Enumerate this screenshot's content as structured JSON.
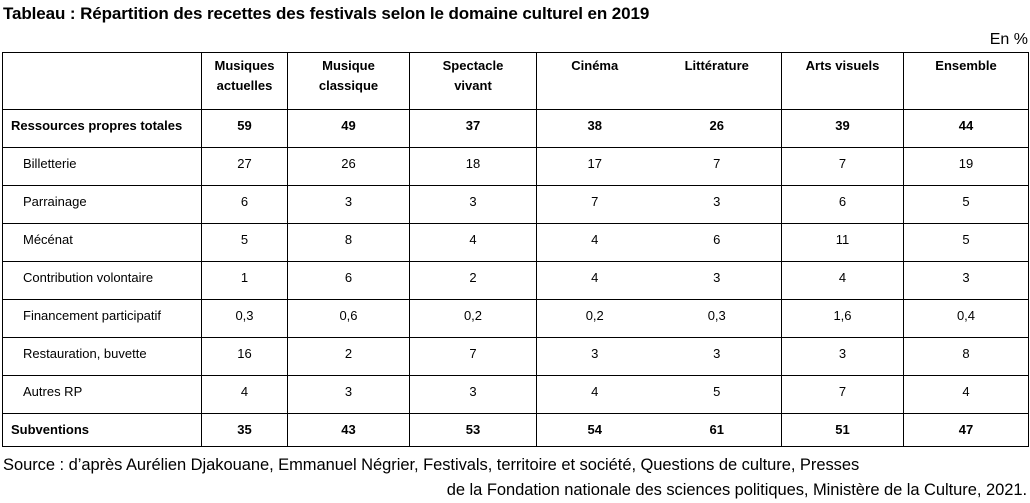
{
  "title": "Tableau : Répartition des recettes des festivals selon le domaine culturel en 2019",
  "unit": "En %",
  "columns": [
    {
      "line1": "Musiques",
      "line2": "actuelles"
    },
    {
      "line1": "Musique",
      "line2": "classique"
    },
    {
      "line1": "Spectacle",
      "line2": "vivant"
    },
    {
      "line1": "Cinéma",
      "line2": ""
    },
    {
      "line1": "Littérature",
      "line2": ""
    },
    {
      "line1": "Arts visuels",
      "line2": ""
    },
    {
      "line1": "Ensemble",
      "line2": ""
    }
  ],
  "rows": [
    {
      "label": "Ressources propres totales",
      "values": [
        "59",
        "49",
        "37",
        "38",
        "26",
        "39",
        "44"
      ]
    },
    {
      "label": "Billetterie",
      "values": [
        "27",
        "26",
        "18",
        "17",
        "7",
        "7",
        "19"
      ]
    },
    {
      "label": "Parrainage",
      "values": [
        "6",
        "3",
        "3",
        "7",
        "3",
        "6",
        "5"
      ]
    },
    {
      "label": "Mécénat",
      "values": [
        "5",
        "8",
        "4",
        "4",
        "6",
        "11",
        "5"
      ]
    },
    {
      "label": "Contribution volontaire",
      "values": [
        "1",
        "6",
        "2",
        "4",
        "3",
        "4",
        "3"
      ]
    },
    {
      "label": "Financement participatif",
      "values": [
        "0,3",
        "0,6",
        "0,2",
        "0,2",
        "0,3",
        "1,6",
        "0,4"
      ]
    },
    {
      "label": "Restauration, buvette",
      "values": [
        "16",
        "2",
        "7",
        "3",
        "3",
        "3",
        "8"
      ]
    },
    {
      "label": "Autres RP",
      "values": [
        "4",
        "3",
        "3",
        "4",
        "5",
        "7",
        "4"
      ]
    },
    {
      "label": "Subventions",
      "values": [
        "35",
        "43",
        "53",
        "54",
        "61",
        "51",
        "47"
      ]
    }
  ],
  "source": {
    "line1": "Source : d’après Aurélien Djakouane, Emmanuel Négrier, Festivals, territoire et société, Questions de culture, Presses",
    "line2": "de la Fondation nationale des sciences politiques, Ministère de la Culture, 2021."
  }
}
